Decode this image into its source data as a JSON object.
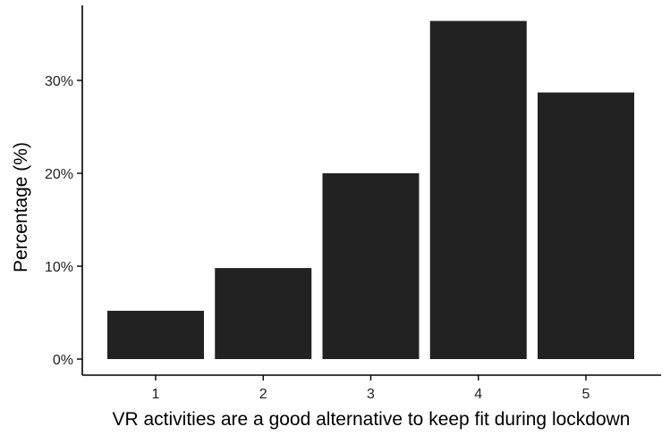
{
  "chart_data": {
    "type": "bar",
    "title": "",
    "xlabel": "VR activities are a good alternative to keep fit during lockdown",
    "ylabel": "Percentage (%)",
    "categories": [
      "1",
      "2",
      "3",
      "4",
      "5"
    ],
    "values": [
      5.2,
      9.8,
      20.0,
      36.4,
      28.7
    ],
    "ylim": [
      0,
      37.9
    ],
    "yticks": [
      0,
      10,
      20,
      30
    ],
    "ytick_labels": [
      "0%",
      "10%",
      "20%",
      "30%"
    ],
    "grid": false,
    "legend": "none",
    "bar_color": "#222222"
  }
}
